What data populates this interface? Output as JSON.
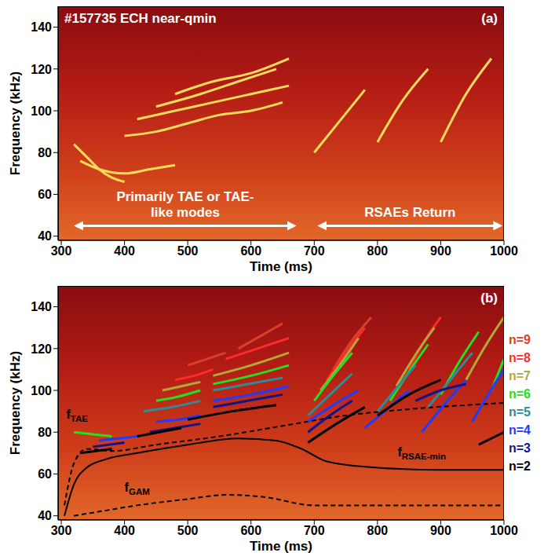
{
  "chart_data": [
    {
      "type": "spectrogram",
      "title": "#157735 ECH near-qmin",
      "panel_label": "(a)",
      "x_label": "Time (ms)",
      "y_label": "Frequency (kHz)",
      "xlim": [
        295,
        1000
      ],
      "xticks": [
        300,
        400,
        500,
        600,
        700,
        800,
        900,
        1000
      ],
      "ylim": [
        38,
        150
      ],
      "yticks": [
        40,
        60,
        80,
        100,
        120,
        140
      ],
      "grid": false,
      "series": [
        {
          "color": "#f7dc5c",
          "x": [
            320,
            340,
            360,
            380,
            400
          ],
          "values": [
            84,
            78,
            72,
            68,
            66
          ]
        },
        {
          "color": "#f7dc5c",
          "x": [
            330,
            360,
            400,
            440,
            480
          ],
          "values": [
            76,
            72,
            70,
            72,
            74
          ]
        },
        {
          "color": "#f7dc5c",
          "x": [
            400,
            450,
            500,
            550,
            600,
            650
          ],
          "values": [
            88,
            90,
            94,
            98,
            100,
            104
          ]
        },
        {
          "color": "#f7dc5c",
          "x": [
            420,
            480,
            540,
            600,
            660
          ],
          "values": [
            96,
            100,
            104,
            108,
            112
          ]
        },
        {
          "color": "#f7dc5c",
          "x": [
            450,
            520,
            580,
            640
          ],
          "values": [
            102,
            108,
            114,
            120
          ]
        },
        {
          "color": "#f7dc5c",
          "x": [
            480,
            540,
            600,
            660
          ],
          "values": [
            108,
            114,
            118,
            125
          ]
        },
        {
          "color": "#f7dc5c",
          "x": [
            700,
            740,
            780
          ],
          "values": [
            80,
            95,
            110
          ]
        },
        {
          "color": "#f7dc5c",
          "x": [
            800,
            840,
            880
          ],
          "values": [
            85,
            105,
            120
          ]
        },
        {
          "color": "#f7dc5c",
          "x": [
            900,
            940,
            980
          ],
          "values": [
            85,
            108,
            125
          ]
        }
      ],
      "annotations": [
        {
          "text": "Primarily TAE or TAE-like modes",
          "x": [
            320,
            672
          ],
          "y": 45
        },
        {
          "text": "RSAEs Return",
          "x": [
            705,
            998
          ],
          "y": 45
        }
      ]
    },
    {
      "type": "spectrogram",
      "panel_label": "(b)",
      "x_label": "Time (ms)",
      "y_label": "Frequency (kHz)",
      "xlim": [
        295,
        1000
      ],
      "xticks": [
        300,
        400,
        500,
        600,
        700,
        800,
        900,
        1000
      ],
      "ylim": [
        38,
        150
      ],
      "yticks": [
        40,
        60,
        80,
        100,
        120,
        140
      ],
      "grid": false,
      "legend": "right",
      "series": [
        {
          "name": "n=9",
          "color": "#d8402a",
          "x": [
            500,
            530,
            560,
            560,
            580,
            615,
            650,
            650,
            730,
            760,
            790
          ],
          "values": [
            112,
            115,
            118,
            null,
            120,
            126,
            132,
            null,
            110,
            124,
            135
          ]
        },
        {
          "name": "n=8",
          "color": "#ff2a2a",
          "x": [
            480,
            510,
            540,
            540,
            560,
            610,
            660,
            660,
            720,
            750,
            780,
            780,
            850,
            875,
            900
          ],
          "values": [
            105,
            107,
            110,
            null,
            115,
            120,
            125,
            null,
            105,
            118,
            130,
            null,
            110,
            124,
            135
          ]
        },
        {
          "name": "n=7",
          "color": "#b0a838",
          "x": [
            460,
            490,
            520,
            520,
            540,
            600,
            660,
            660,
            710,
            740,
            770,
            770,
            830,
            860,
            890,
            890,
            940,
            970,
            1000
          ],
          "values": [
            100,
            102,
            104,
            null,
            107,
            112,
            118,
            null,
            100,
            112,
            125,
            null,
            102,
            117,
            130,
            null,
            105,
            121,
            135
          ]
        },
        {
          "name": "n=6",
          "color": "#22e022",
          "x": [
            320,
            350,
            380,
            380,
            450,
            485,
            520,
            520,
            540,
            600,
            660,
            660,
            700,
            730,
            760,
            760,
            820,
            850,
            880,
            880,
            900,
            930,
            960,
            960,
            980,
            1000
          ],
          "values": [
            80,
            79,
            78,
            null,
            95,
            97,
            100,
            null,
            103,
            107,
            112,
            null,
            95,
            107,
            118,
            null,
            95,
            109,
            122,
            null,
            98,
            114,
            128,
            null,
            100,
            115
          ]
        },
        {
          "name": "n=5",
          "color": "#2a8e98",
          "x": [
            430,
            475,
            520,
            520,
            540,
            595,
            650,
            650,
            690,
            725,
            760,
            760,
            800,
            830,
            860,
            860,
            880,
            915,
            950
          ],
          "values": [
            90,
            92,
            95,
            null,
            100,
            103,
            106,
            null,
            88,
            98,
            108,
            null,
            90,
            101,
            112,
            null,
            92,
            105,
            118
          ]
        },
        {
          "name": "n=4",
          "color": "#1e3cff",
          "x": [
            360,
            390,
            420,
            420,
            450,
            485,
            520,
            520,
            540,
            600,
            660,
            660,
            690,
            730,
            770,
            770,
            780,
            815,
            850,
            850,
            870,
            905,
            940,
            940,
            950,
            975,
            1000
          ],
          "values": [
            76,
            77,
            78,
            null,
            85,
            86,
            88,
            null,
            95,
            98,
            102,
            null,
            85,
            93,
            100,
            null,
            82,
            91,
            100,
            null,
            80,
            93,
            105,
            null,
            85,
            98,
            110
          ]
        },
        {
          "name": "n=3",
          "color": "#14148a",
          "x": [
            350,
            375,
            400,
            400,
            440,
            480,
            520,
            520,
            540,
            595,
            650,
            650,
            690,
            725,
            760,
            760,
            860,
            900,
            940
          ],
          "values": [
            73,
            74,
            75,
            null,
            80,
            82,
            84,
            null,
            92,
            95,
            98,
            null,
            80,
            88,
            95,
            null,
            95,
            100,
            103
          ]
        },
        {
          "name": "n=2",
          "color": "#000000",
          "x": [
            330,
            355,
            380,
            380,
            420,
            455,
            490,
            490,
            500,
            570,
            640,
            640,
            690,
            735,
            780,
            780,
            800,
            850,
            900,
            900,
            960,
            980,
            1000
          ],
          "values": [
            70,
            71,
            72,
            null,
            78,
            80,
            82,
            null,
            86,
            90,
            93,
            null,
            75,
            84,
            92,
            null,
            88,
            98,
            105,
            null,
            74,
            77,
            80
          ]
        }
      ],
      "curves": [
        {
          "name": "fTAE",
          "color": "#000000",
          "line_style": "dashed",
          "x": [
            305,
            320,
            340,
            380,
            450,
            550,
            650,
            750,
            850,
            1000
          ],
          "values": [
            45,
            65,
            72,
            71,
            74,
            78,
            83,
            88,
            91,
            94
          ],
          "label_x": 325,
          "label_y": 88
        },
        {
          "name": "fRSAE-min",
          "color": "#000000",
          "line_style": "solid",
          "x": [
            305,
            320,
            340,
            370,
            420,
            500,
            580,
            640,
            680,
            720,
            800,
            900,
            1000
          ],
          "values": [
            40,
            55,
            63,
            67,
            70,
            74,
            77,
            76,
            72,
            66,
            63,
            62,
            62
          ],
          "label_x": 870,
          "label_y": 70
        },
        {
          "name": "fGAM",
          "color": "#000000",
          "line_style": "dashed",
          "x": [
            320,
            360,
            420,
            500,
            560,
            620,
            700,
            800,
            900,
            1000
          ],
          "values": [
            40,
            42,
            45,
            48,
            50,
            49,
            45,
            45,
            45,
            45
          ],
          "label_x": 420,
          "label_y": 53
        }
      ]
    }
  ]
}
